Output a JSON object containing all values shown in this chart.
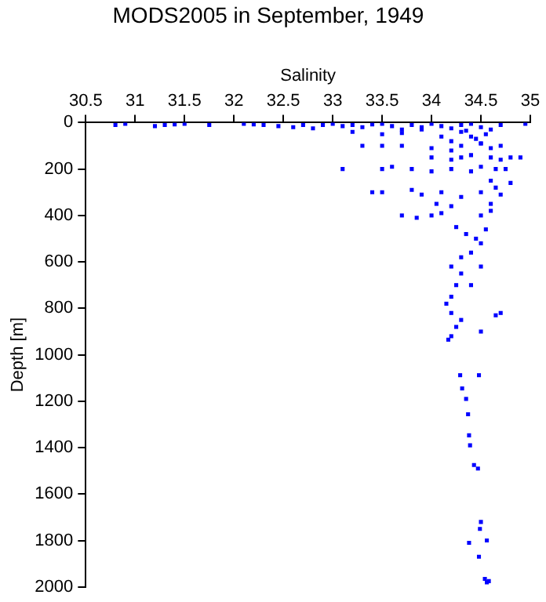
{
  "chart_data": {
    "type": "scatter",
    "title": "MODS2005 in September, 1949",
    "xlabel": "Salinity",
    "ylabel": "Depth [m]",
    "xlim": [
      30.5,
      35
    ],
    "xticks": [
      30.5,
      31,
      31.5,
      32,
      32.5,
      33,
      33.5,
      34,
      34.5,
      35
    ],
    "ylim": [
      2000,
      0
    ],
    "yticks": [
      0,
      200,
      400,
      600,
      800,
      1000,
      1200,
      1400,
      1600,
      1800,
      2000
    ],
    "grid": false,
    "legend": false,
    "marker": "square",
    "series": [
      {
        "color": "#0000ff",
        "x": [
          30.8,
          30.9,
          31.2,
          31.3,
          31.4,
          31.5,
          31.75,
          32.1,
          32.2,
          32.3,
          32.45,
          32.6,
          32.7,
          32.8,
          32.9,
          33.0,
          33.1,
          33.2,
          33.3,
          33.4,
          33.5,
          33.6,
          33.7,
          33.8,
          33.9,
          34.0,
          34.1,
          34.2,
          34.3,
          34.4,
          34.5,
          34.6,
          34.7,
          34.95,
          33.2,
          33.5,
          33.7,
          33.9,
          34.1,
          34.3,
          34.45,
          34.55,
          34.2,
          34.4,
          34.5,
          34.35,
          33.3,
          33.5,
          33.7,
          34.0,
          34.2,
          34.3,
          34.5,
          34.6,
          34.7,
          34.0,
          34.2,
          34.3,
          34.4,
          34.6,
          34.7,
          34.8,
          34.9,
          33.1,
          33.5,
          33.6,
          33.8,
          34.0,
          34.2,
          34.4,
          34.5,
          34.65,
          34.75,
          34.6,
          34.8,
          33.4,
          33.5,
          33.8,
          33.9,
          34.1,
          34.3,
          34.5,
          34.65,
          34.7,
          34.05,
          34.2,
          34.6,
          33.7,
          33.85,
          34.0,
          34.1,
          34.5,
          34.6,
          34.25,
          34.35,
          34.45,
          34.5,
          34.55,
          34.4,
          34.3,
          34.2,
          34.3,
          34.25,
          34.2,
          34.15,
          34.2,
          34.3,
          34.25,
          34.2,
          34.4,
          34.5,
          34.65,
          34.7,
          34.5,
          34.17,
          34.29,
          34.48,
          34.31,
          34.35,
          34.37,
          34.38,
          34.39,
          34.43,
          34.47,
          34.5,
          34.49,
          34.38,
          34.56,
          34.48,
          34.54,
          34.56,
          34.58
        ],
        "values": [
          10,
          5,
          15,
          10,
          8,
          5,
          10,
          5,
          8,
          10,
          15,
          20,
          10,
          25,
          10,
          5,
          15,
          10,
          20,
          8,
          5,
          15,
          30,
          10,
          20,
          5,
          15,
          25,
          10,
          5,
          20,
          30,
          10,
          5,
          40,
          50,
          45,
          30,
          60,
          40,
          70,
          50,
          80,
          60,
          90,
          35,
          100,
          100,
          100,
          110,
          120,
          100,
          90,
          110,
          100,
          150,
          160,
          150,
          140,
          150,
          160,
          150,
          150,
          200,
          200,
          190,
          200,
          210,
          200,
          210,
          190,
          200,
          200,
          250,
          260,
          300,
          300,
          290,
          310,
          300,
          320,
          300,
          280,
          310,
          350,
          360,
          350,
          400,
          410,
          400,
          390,
          400,
          380,
          450,
          480,
          500,
          520,
          460,
          560,
          580,
          620,
          650,
          700,
          750,
          780,
          820,
          850,
          880,
          920,
          700,
          620,
          830,
          820,
          900,
          935,
          1088,
          1088,
          1145,
          1190,
          1256,
          1347,
          1390,
          1475,
          1490,
          1720,
          1750,
          1810,
          1800,
          1870,
          1965,
          1980,
          1975
        ]
      }
    ]
  }
}
